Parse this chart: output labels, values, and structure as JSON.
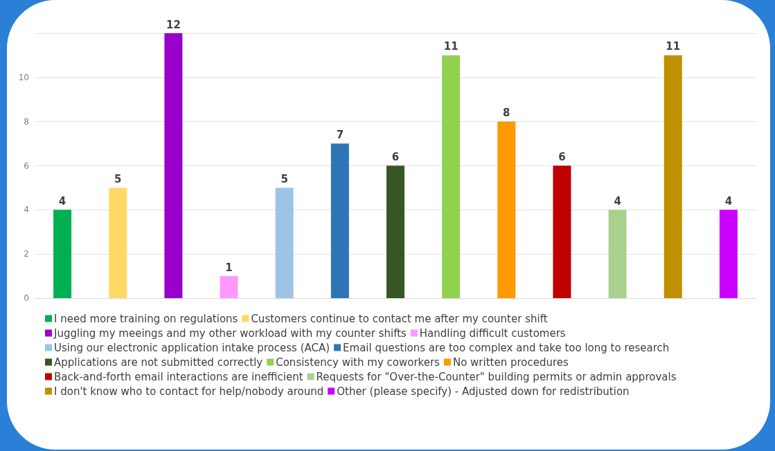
{
  "chart_data": {
    "type": "bar",
    "categories": [
      null,
      null,
      null,
      null,
      null,
      null,
      null,
      null,
      null,
      null,
      null,
      null,
      null
    ],
    "series": [
      {
        "name": "I need more training on regulations",
        "color": "#00b050",
        "values": [
          4,
          null,
          null,
          null,
          null,
          null,
          null,
          null,
          null,
          null,
          null,
          null,
          null
        ]
      },
      {
        "name": "Customers continue to contact me after my counter shift",
        "color": "#ffd966",
        "values": [
          null,
          5,
          null,
          null,
          null,
          null,
          null,
          null,
          null,
          null,
          null,
          null,
          null
        ]
      },
      {
        "name": "Juggling my meeings and my other workload with my counter shifts",
        "color": "#9900cc",
        "values": [
          null,
          null,
          12,
          null,
          null,
          null,
          null,
          null,
          null,
          null,
          null,
          null,
          null
        ]
      },
      {
        "name": "Handling difficult customers",
        "color": "#ff99ff",
        "values": [
          null,
          null,
          null,
          1,
          null,
          null,
          null,
          null,
          null,
          null,
          null,
          null,
          null
        ]
      },
      {
        "name": "Using our electronic application intake process (ACA)",
        "color": "#9dc3e6",
        "values": [
          null,
          null,
          null,
          null,
          5,
          null,
          null,
          null,
          null,
          null,
          null,
          null,
          null
        ]
      },
      {
        "name": "Email questions are too complex and take too long to research",
        "color": "#2e75b6",
        "values": [
          null,
          null,
          null,
          null,
          null,
          7,
          null,
          null,
          null,
          null,
          null,
          null,
          null
        ]
      },
      {
        "name": "Applications are not submitted correctly",
        "color": "#375623",
        "values": [
          null,
          null,
          null,
          null,
          null,
          null,
          6,
          null,
          null,
          null,
          null,
          null,
          null
        ]
      },
      {
        "name": "Consistency with my coworkers",
        "color": "#92d050",
        "values": [
          null,
          null,
          null,
          null,
          null,
          null,
          null,
          11,
          null,
          null,
          null,
          null,
          null
        ]
      },
      {
        "name": "No written procedures",
        "color": "#ff9900",
        "values": [
          null,
          null,
          null,
          null,
          null,
          null,
          null,
          null,
          8,
          null,
          null,
          null,
          null
        ]
      },
      {
        "name": "Back-and-forth email interactions are inefficient",
        "color": "#c00000",
        "values": [
          null,
          null,
          null,
          null,
          null,
          null,
          null,
          null,
          null,
          6,
          null,
          null,
          null
        ]
      },
      {
        "name": "Requests for \"Over-the-Counter\" building permits or admin approvals",
        "color": "#a9d18e",
        "values": [
          null,
          null,
          null,
          null,
          null,
          null,
          null,
          null,
          null,
          null,
          4,
          null,
          null
        ]
      },
      {
        "name": "I don't know who to contact for help/nobody around",
        "color": "#bf9000",
        "values": [
          null,
          null,
          null,
          null,
          null,
          null,
          null,
          null,
          null,
          null,
          null,
          11,
          null
        ]
      },
      {
        "name": "Other (please specify) - Adjusted down for redistribution",
        "color": "#cc00ff",
        "values": [
          null,
          null,
          null,
          null,
          null,
          null,
          null,
          null,
          null,
          null,
          null,
          null,
          4
        ]
      }
    ],
    "ylim": [
      0,
      12
    ],
    "yticks": [
      0,
      2,
      4,
      6,
      8,
      10,
      {
        "value": 12,
        "label": null
      }
    ],
    "grid": "y",
    "legend": "bottom",
    "data_labels": true
  }
}
